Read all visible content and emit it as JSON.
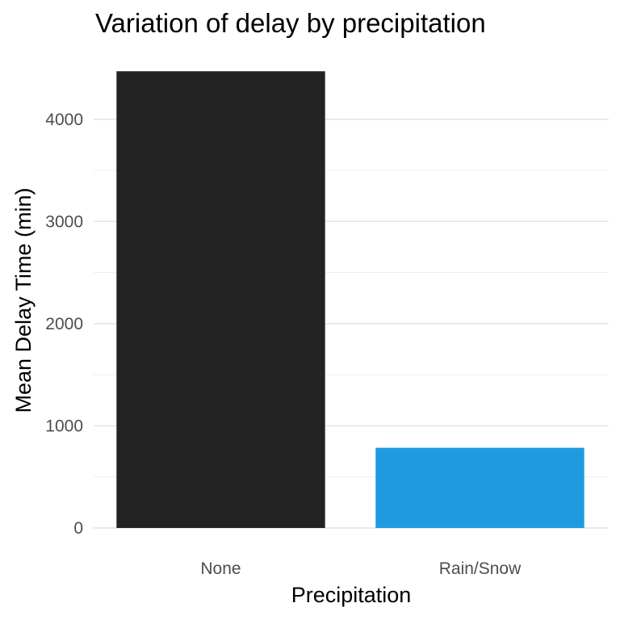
{
  "chart_data": {
    "type": "bar",
    "title": "Variation of delay by precipitation",
    "xlabel": "Precipitation",
    "ylabel": "Mean Delay Time (min)",
    "categories": [
      "None",
      "Rain/Snow"
    ],
    "values": [
      4470,
      785
    ],
    "bar_colors": [
      "#232323",
      "#1e9ae0"
    ],
    "ylim": [
      0,
      4500
    ],
    "yticks": [
      0,
      1000,
      2000,
      3000,
      4000
    ],
    "grid": true,
    "legend": "none"
  }
}
